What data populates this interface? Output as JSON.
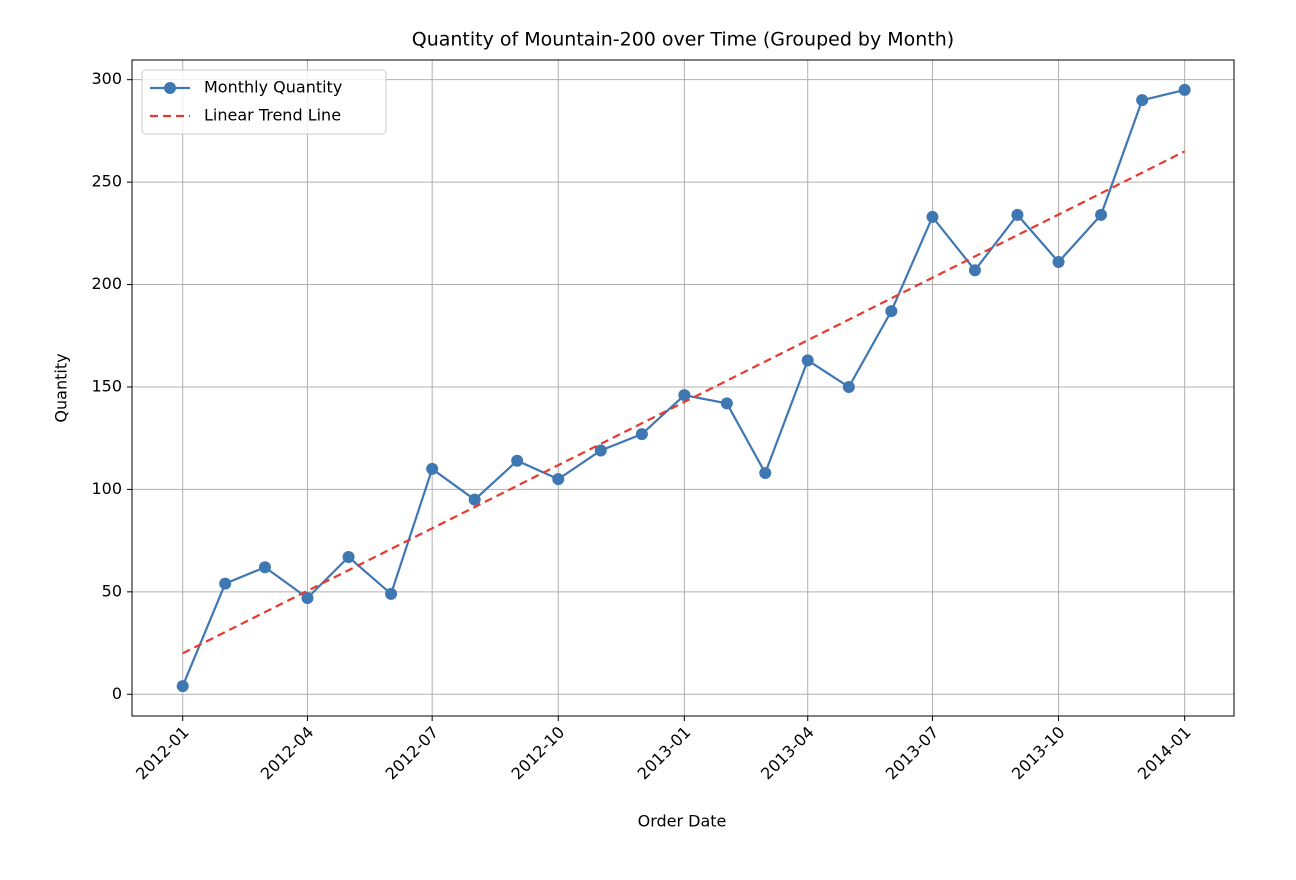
{
  "chart_data": {
    "type": "line",
    "title": "Quantity of Mountain-200 over Time (Grouped by Month)",
    "x_label": "Order Date",
    "y_label": "Quantity",
    "x": [
      "2012-01",
      "2012-02",
      "2012-03",
      "2012-04",
      "2012-05",
      "2012-06",
      "2012-07",
      "2012-08",
      "2012-09",
      "2012-10",
      "2012-11",
      "2012-12",
      "2013-01",
      "2013-02",
      "2013-03",
      "2013-04",
      "2013-05",
      "2013-06",
      "2013-07",
      "2013-08",
      "2013-09",
      "2013-10",
      "2013-11",
      "2013-12",
      "2014-01"
    ],
    "series": [
      {
        "name": "Monthly Quantity",
        "color": "#3f77b3",
        "style": "solid",
        "marker": true,
        "values": [
          4,
          54,
          62,
          47,
          67,
          49,
          110,
          95,
          114,
          105,
          119,
          127,
          146,
          142,
          108,
          163,
          150,
          187,
          233,
          207,
          234,
          211,
          234,
          290,
          295
        ]
      },
      {
        "name": "Linear Trend Line",
        "color": "#e8392f",
        "style": "dashed",
        "marker": false,
        "x": [
          "2012-01",
          "2014-01"
        ],
        "values": [
          20,
          265
        ]
      }
    ],
    "xlim": [
      "2011-11-25",
      "2014-02-06"
    ],
    "xticks": [
      "2012-01",
      "2012-04",
      "2012-07",
      "2012-10",
      "2013-01",
      "2013-04",
      "2013-07",
      "2013-10",
      "2014-01"
    ],
    "ylim": [
      -10.6,
      309.6
    ],
    "yticks": [
      0,
      50,
      100,
      150,
      200,
      250,
      300
    ],
    "grid": true,
    "legend": "upper left"
  }
}
